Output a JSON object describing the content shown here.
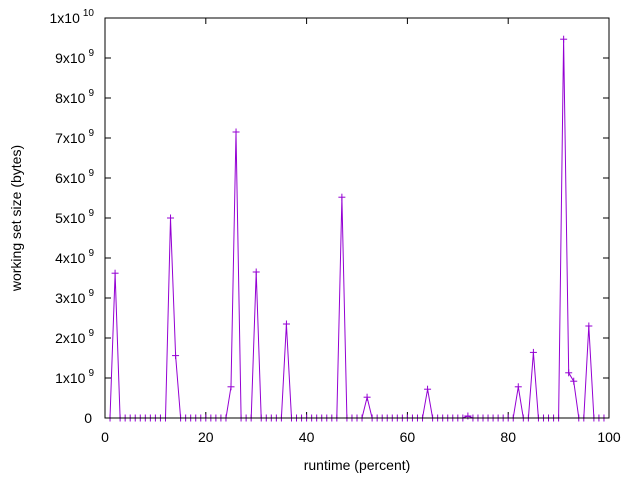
{
  "chart_data": {
    "type": "line",
    "xlabel": "runtime (percent)",
    "ylabel": "working set size (bytes)",
    "xlim": [
      0,
      100
    ],
    "ylim": [
      0,
      10000000000
    ],
    "grid": false,
    "legend": "none",
    "series_color": "#9400d3",
    "marker": "plus",
    "x_ticks": [
      {
        "value": 0,
        "label": "0"
      },
      {
        "value": 20,
        "label": "20"
      },
      {
        "value": 40,
        "label": "40"
      },
      {
        "value": 60,
        "label": "60"
      },
      {
        "value": 80,
        "label": "80"
      },
      {
        "value": 100,
        "label": "100"
      }
    ],
    "y_ticks": [
      {
        "value": 0,
        "mant": "0",
        "exp": ""
      },
      {
        "value": 1000000000,
        "mant": "1x10",
        "exp": "9"
      },
      {
        "value": 2000000000,
        "mant": "2x10",
        "exp": "9"
      },
      {
        "value": 3000000000,
        "mant": "3x10",
        "exp": "9"
      },
      {
        "value": 4000000000,
        "mant": "4x10",
        "exp": "9"
      },
      {
        "value": 5000000000,
        "mant": "5x10",
        "exp": "9"
      },
      {
        "value": 6000000000,
        "mant": "6x10",
        "exp": "9"
      },
      {
        "value": 7000000000,
        "mant": "7x10",
        "exp": "9"
      },
      {
        "value": 8000000000,
        "mant": "8x10",
        "exp": "9"
      },
      {
        "value": 9000000000,
        "mant": "9x10",
        "exp": "9"
      },
      {
        "value": 10000000000,
        "mant": "1x10",
        "exp": "10"
      }
    ],
    "series": [
      {
        "x": [
          1,
          2,
          3,
          4,
          5,
          6,
          7,
          8,
          9,
          10,
          11,
          12,
          13,
          14,
          15,
          16,
          17,
          18,
          19,
          20,
          21,
          22,
          23,
          24,
          25,
          26,
          27,
          28,
          29,
          30,
          31,
          32,
          33,
          34,
          35,
          36,
          37,
          38,
          39,
          40,
          41,
          42,
          43,
          44,
          45,
          46,
          47,
          48,
          49,
          50,
          51,
          52,
          53,
          54,
          55,
          56,
          57,
          58,
          59,
          60,
          61,
          62,
          63,
          64,
          65,
          66,
          67,
          68,
          69,
          70,
          71,
          72,
          73,
          74,
          75,
          76,
          77,
          78,
          79,
          80,
          81,
          82,
          83,
          84,
          85,
          86,
          87,
          88,
          89,
          90,
          91,
          92,
          93,
          94,
          95,
          96,
          97,
          98,
          99
        ],
        "y": [
          0,
          3620000000,
          0,
          0,
          0,
          0,
          0,
          0,
          0,
          0,
          0,
          0,
          5000000000,
          1560000000,
          0,
          0,
          0,
          0,
          0,
          0,
          0,
          0,
          0,
          0,
          780000000,
          7150000000,
          0,
          0,
          0,
          3650000000,
          0,
          0,
          0,
          0,
          0,
          2350000000,
          0,
          0,
          0,
          0,
          0,
          0,
          0,
          0,
          0,
          0,
          5520000000,
          0,
          0,
          0,
          0,
          520000000,
          0,
          0,
          0,
          0,
          0,
          0,
          0,
          0,
          0,
          0,
          0,
          720000000,
          0,
          0,
          0,
          0,
          0,
          0,
          0,
          50000000,
          0,
          0,
          0,
          0,
          0,
          0,
          0,
          0,
          0,
          780000000,
          0,
          0,
          1640000000,
          0,
          0,
          0,
          0,
          0,
          9470000000,
          1130000000,
          920000000,
          0,
          0,
          2300000000,
          0,
          0,
          0
        ]
      }
    ]
  }
}
